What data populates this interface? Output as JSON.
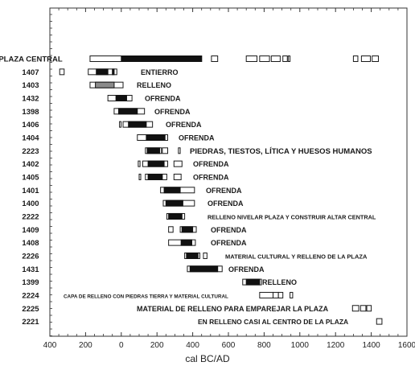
{
  "chart_data": {
    "type": "range",
    "xlabel": "cal BC/AD",
    "x_axis": {
      "min": -400,
      "max": 1600,
      "ticks": [
        {
          "value": -400,
          "label": "400"
        },
        {
          "value": -200,
          "label": "200"
        },
        {
          "value": 0,
          "label": "0"
        },
        {
          "value": 200,
          "label": "200"
        },
        {
          "value": 400,
          "label": "400"
        },
        {
          "value": 600,
          "label": "600"
        },
        {
          "value": 800,
          "label": "800"
        },
        {
          "value": 1000,
          "label": "1000"
        },
        {
          "value": 1200,
          "label": "1200"
        },
        {
          "value": 1400,
          "label": "1400"
        },
        {
          "value": 1600,
          "label": "1600"
        }
      ]
    },
    "rows": [
      {
        "id": "PLAZA CENTRAL",
        "annotation": "",
        "ranges_1sigma": [
          [
            0,
            450
          ]
        ],
        "ranges_2sigma": [
          [
            -175,
            450
          ],
          [
            505,
            540
          ],
          [
            700,
            760
          ],
          [
            775,
            830
          ],
          [
            840,
            890
          ],
          [
            905,
            930
          ],
          [
            935,
            945
          ],
          [
            1300,
            1325
          ],
          [
            1345,
            1395
          ],
          [
            1405,
            1440
          ]
        ]
      },
      {
        "id": "1407",
        "annotation": "ENTIERRO",
        "ranges_1sigma": [
          [
            -140,
            -75
          ],
          [
            -50,
            -40
          ]
        ],
        "ranges_2sigma": [
          [
            -345,
            -320
          ],
          [
            -185,
            -25
          ]
        ]
      },
      {
        "id": "1403",
        "annotation": "RELLENO",
        "ranges_1sigma": [
          [
            -145,
            -40
          ]
        ],
        "ranges_2sigma": [
          [
            -175,
            10
          ]
        ]
      },
      {
        "id": "1432",
        "annotation": "OFRENDA",
        "ranges_1sigma": [
          [
            -30,
            30
          ]
        ],
        "ranges_2sigma": [
          [
            -75,
            60
          ]
        ]
      },
      {
        "id": "1398",
        "annotation": "OFRENDA",
        "ranges_1sigma": [
          [
            -15,
            90
          ]
        ],
        "ranges_2sigma": [
          [
            -40,
            130
          ]
        ]
      },
      {
        "id": "1406",
        "annotation": "OFRENDA",
        "ranges_1sigma": [
          [
            40,
            140
          ]
        ],
        "ranges_2sigma": [
          [
            -10,
            -5
          ],
          [
            10,
            175
          ]
        ]
      },
      {
        "id": "1404",
        "annotation": "OFRENDA",
        "ranges_1sigma": [
          [
            140,
            245
          ]
        ],
        "ranges_2sigma": [
          [
            90,
            260
          ]
        ]
      },
      {
        "id": "2223",
        "annotation": "PIEDRAS, TIESTOS, LÍTICA Y  HUESOS HUMANOS",
        "ranges_1sigma": [
          [
            145,
            215
          ]
        ],
        "ranges_2sigma": [
          [
            135,
            225
          ],
          [
            230,
            260
          ],
          [
            320,
            330
          ]
        ]
      },
      {
        "id": "1402",
        "annotation": "OFRENDA",
        "ranges_1sigma": [
          [
            150,
            240
          ]
        ],
        "ranges_2sigma": [
          [
            95,
            105
          ],
          [
            120,
            260
          ],
          [
            295,
            340
          ]
        ]
      },
      {
        "id": "1405",
        "annotation": "OFRENDA",
        "ranges_1sigma": [
          [
            150,
            230
          ]
        ],
        "ranges_2sigma": [
          [
            100,
            105
          ],
          [
            135,
            255
          ],
          [
            295,
            335
          ]
        ]
      },
      {
        "id": "1401",
        "annotation": "OFRENDA",
        "ranges_1sigma": [
          [
            240,
            330
          ]
        ],
        "ranges_2sigma": [
          [
            220,
            410
          ]
        ]
      },
      {
        "id": "1400",
        "annotation": "OFRENDA",
        "ranges_1sigma": [
          [
            250,
            345
          ]
        ],
        "ranges_2sigma": [
          [
            235,
            410
          ]
        ]
      },
      {
        "id": "2222",
        "annotation": "RELLENO NIVELAR PLAZA Y CONSTRUIR ALTAR CENTRAL",
        "ranges_1sigma": [
          [
            265,
            340
          ]
        ],
        "ranges_2sigma": [
          [
            255,
            355
          ]
        ]
      },
      {
        "id": "1409",
        "annotation": "OFRENDA",
        "ranges_1sigma": [
          [
            340,
            400
          ]
        ],
        "ranges_2sigma": [
          [
            265,
            290
          ],
          [
            330,
            420
          ]
        ]
      },
      {
        "id": "1408",
        "annotation": "OFRENDA",
        "ranges_1sigma": [
          [
            335,
            395
          ]
        ],
        "ranges_2sigma": [
          [
            265,
            415
          ]
        ]
      },
      {
        "id": "2226",
        "annotation": "MATERIAL CULTURAL Y RELLENO DE LA PLAZA",
        "ranges_1sigma": [
          [
            365,
            430
          ]
        ],
        "ranges_2sigma": [
          [
            355,
            440
          ],
          [
            460,
            480
          ]
        ]
      },
      {
        "id": "1431",
        "annotation": "OFRENDA",
        "ranges_1sigma": [
          [
            385,
            540
          ]
        ],
        "ranges_2sigma": [
          [
            370,
            565
          ]
        ]
      },
      {
        "id": "1399",
        "annotation": "RELLENO",
        "ranges_1sigma": [
          [
            700,
            775
          ]
        ],
        "ranges_2sigma": [
          [
            680,
            785
          ]
        ]
      },
      {
        "id": "2224",
        "annotation": "CAPA DE RELLENO CON PIEDRAS TIERRA Y MATERIAL CULTURAL",
        "ranges_1sigma": [],
        "ranges_2sigma": [
          [
            775,
            850
          ],
          [
            850,
            880
          ],
          [
            880,
            905
          ],
          [
            945,
            960
          ]
        ]
      },
      {
        "id": "2225",
        "annotation": "MATERIAL DE RELLENO PARA EMPAREJAR LA PLAZA",
        "ranges_1sigma": [],
        "ranges_2sigma": [
          [
            1295,
            1330
          ],
          [
            1340,
            1370
          ],
          [
            1375,
            1400
          ]
        ]
      },
      {
        "id": "2221",
        "annotation": "EN RELLENO CASI AL CENTRO DE LA PLAZA",
        "ranges_1sigma": [],
        "ranges_2sigma": [
          [
            1430,
            1460
          ]
        ]
      }
    ]
  }
}
